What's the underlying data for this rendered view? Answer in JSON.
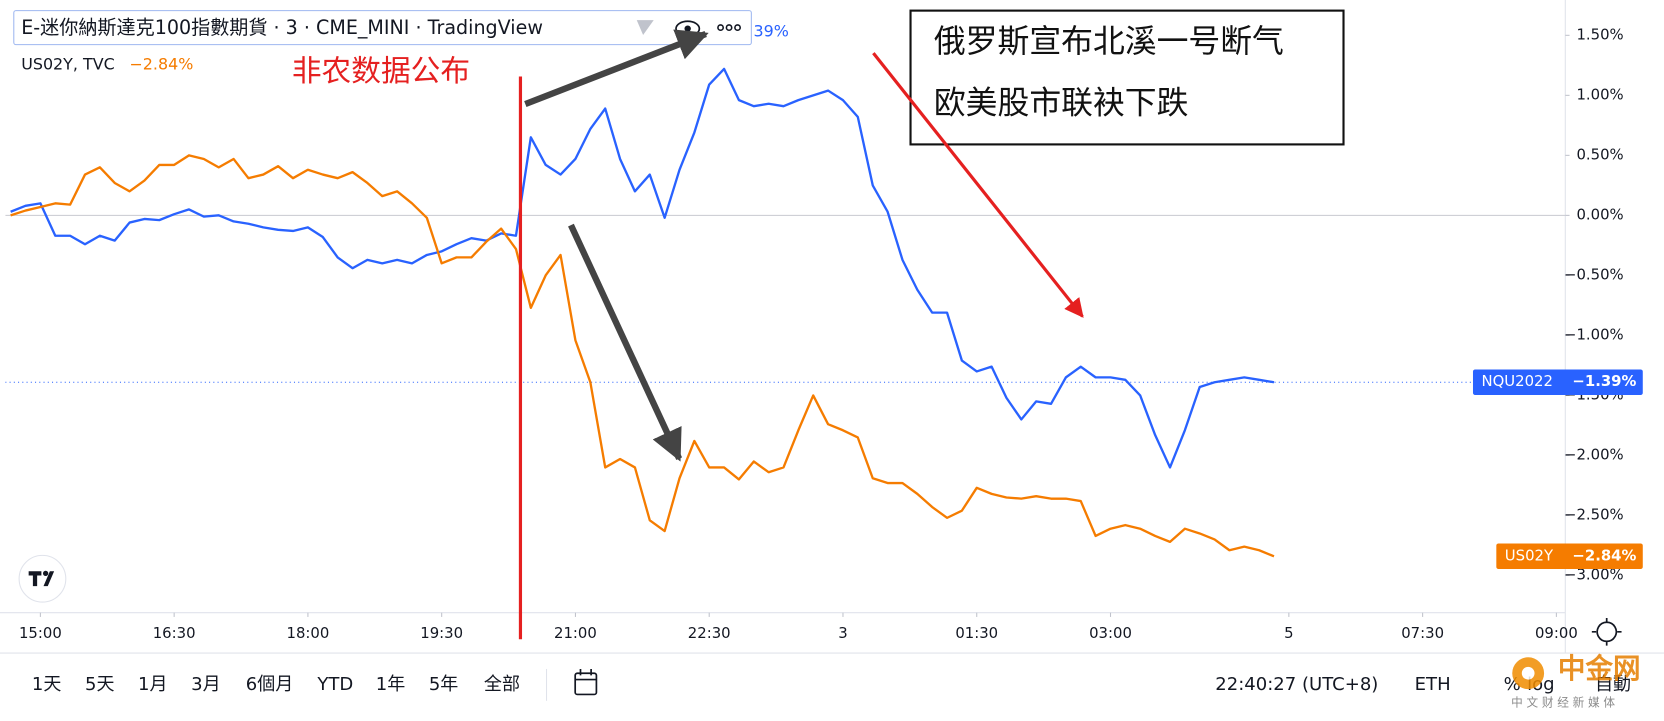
{
  "header": {
    "title": "E-迷你納斯達克100指數期貨 · 3 · CME_MINI · TradingView",
    "value_fragment": "39%"
  },
  "chart_data": {
    "type": "line",
    "x": [
      -20,
      -10,
      0,
      10,
      20,
      30,
      40,
      50,
      60,
      70,
      80,
      90,
      100,
      110,
      120,
      130,
      140,
      150,
      160,
      170,
      180,
      190,
      200,
      210,
      220,
      230,
      240,
      250,
      260,
      270,
      280,
      290,
      300,
      310,
      320,
      330,
      340,
      350,
      360,
      370,
      380,
      390,
      400,
      410,
      420,
      430,
      440,
      450,
      460,
      470,
      480,
      490,
      500,
      510,
      520,
      530,
      540,
      550,
      560,
      570,
      580,
      590,
      600,
      610,
      620,
      630,
      640,
      650,
      660,
      670,
      680,
      690,
      700,
      710,
      720,
      730,
      740,
      750,
      760,
      770,
      780,
      790,
      800,
      810,
      820,
      830
    ],
    "series": [
      {
        "name": "NQU2022",
        "color": "#2962ff",
        "last_value_label": "−1.39%",
        "values": [
          0.03,
          0.08,
          0.1,
          -0.17,
          -0.17,
          -0.24,
          -0.17,
          -0.21,
          -0.06,
          -0.03,
          -0.04,
          0.01,
          0.05,
          -0.01,
          0.0,
          -0.05,
          -0.07,
          -0.1,
          -0.12,
          -0.13,
          -0.1,
          -0.18,
          -0.35,
          -0.44,
          -0.37,
          -0.4,
          -0.37,
          -0.4,
          -0.33,
          -0.3,
          -0.24,
          -0.19,
          -0.21,
          -0.15,
          -0.17,
          0.65,
          0.42,
          0.34,
          0.47,
          0.72,
          0.89,
          0.47,
          0.2,
          0.34,
          -0.02,
          0.38,
          0.69,
          1.09,
          1.22,
          0.96,
          0.91,
          0.93,
          0.91,
          0.96,
          1.0,
          1.04,
          0.96,
          0.82,
          0.25,
          0.03,
          -0.37,
          -0.62,
          -0.81,
          -0.81,
          -1.21,
          -1.3,
          -1.26,
          -1.52,
          -1.7,
          -1.55,
          -1.57,
          -1.35,
          -1.26,
          -1.35,
          -1.35,
          -1.37,
          -1.5,
          -1.83,
          -2.1,
          -1.79,
          -1.43,
          -1.39,
          -1.37,
          -1.35,
          -1.37,
          -1.39
        ]
      },
      {
        "name": "US02Y",
        "color": "#f57c00",
        "legend_text": "US02Y, TVC",
        "legend_value": "−2.84%",
        "last_value_label": "−2.84%",
        "values": [
          0.0,
          0.04,
          0.07,
          0.1,
          0.09,
          0.34,
          0.4,
          0.27,
          0.2,
          0.29,
          0.42,
          0.42,
          0.5,
          0.47,
          0.4,
          0.47,
          0.31,
          0.34,
          0.41,
          0.31,
          0.38,
          0.34,
          0.31,
          0.36,
          0.27,
          0.16,
          0.2,
          0.1,
          -0.02,
          -0.4,
          -0.35,
          -0.35,
          -0.22,
          -0.11,
          -0.28,
          -0.77,
          -0.5,
          -0.33,
          -1.04,
          -1.39,
          -2.1,
          -2.03,
          -2.1,
          -2.54,
          -2.63,
          -2.19,
          -1.88,
          -2.1,
          -2.1,
          -2.2,
          -2.05,
          -2.14,
          -2.1,
          -1.79,
          -1.5,
          -1.74,
          -1.79,
          -1.85,
          -2.19,
          -2.23,
          -2.23,
          -2.32,
          -2.43,
          -2.52,
          -2.46,
          -2.27,
          -2.32,
          -2.35,
          -2.36,
          -2.34,
          -2.36,
          -2.36,
          -2.38,
          -2.67,
          -2.61,
          -2.58,
          -2.61,
          -2.67,
          -2.72,
          -2.61,
          -2.65,
          -2.7,
          -2.79,
          -2.76,
          -2.79,
          -2.84
        ]
      }
    ],
    "xlim": [
      -23.6,
      1026
    ],
    "xticks": [
      {
        "value": 0,
        "label": "15:00"
      },
      {
        "value": 90,
        "label": "16:30"
      },
      {
        "value": 180,
        "label": "18:00"
      },
      {
        "value": 270,
        "label": "19:30"
      },
      {
        "value": 360,
        "label": "21:00"
      },
      {
        "value": 450,
        "label": "22:30"
      },
      {
        "value": 540,
        "label": "3"
      },
      {
        "value": 630,
        "label": "01:30"
      },
      {
        "value": 720,
        "label": "03:00"
      },
      {
        "value": 840,
        "label": "5"
      },
      {
        "value": 930,
        "label": "07:30"
      },
      {
        "value": 1020,
        "label": "09:00"
      }
    ],
    "ylim": [
      -3.31,
      1.75
    ],
    "yticks": [
      {
        "value": 1.5,
        "label": "1.50%"
      },
      {
        "value": 1,
        "label": "1.00%"
      },
      {
        "value": 0.5,
        "label": "0.50%"
      },
      {
        "value": 0,
        "label": "0.00%"
      },
      {
        "value": -0.5,
        "label": "−0.50%"
      },
      {
        "value": -1,
        "label": "−1.00%"
      },
      {
        "value": -1.5,
        "label": "−1.50%"
      },
      {
        "value": -2,
        "label": "−2.00%"
      },
      {
        "value": -2.5,
        "label": "−2.50%"
      },
      {
        "value": -3,
        "label": "−3.00%"
      }
    ],
    "event": {
      "text": "非农数据公布",
      "x": 323
    },
    "annotation_lines": [
      "俄罗斯宣布北溪一号断气",
      "欧美股市联袂下跌"
    ]
  },
  "toolbar": {
    "ranges": [
      "1天",
      "5天",
      "1月",
      "3月",
      "6個月",
      "YTD",
      "1年",
      "5年",
      "全部"
    ],
    "clock": "22:40:27 (UTC+8)",
    "session": "ETH",
    "percent": "%",
    "log": "log",
    "auto": "自動"
  },
  "watermark": {
    "name": "中金网",
    "sub": "中 文 财 经 新 媒 体"
  }
}
